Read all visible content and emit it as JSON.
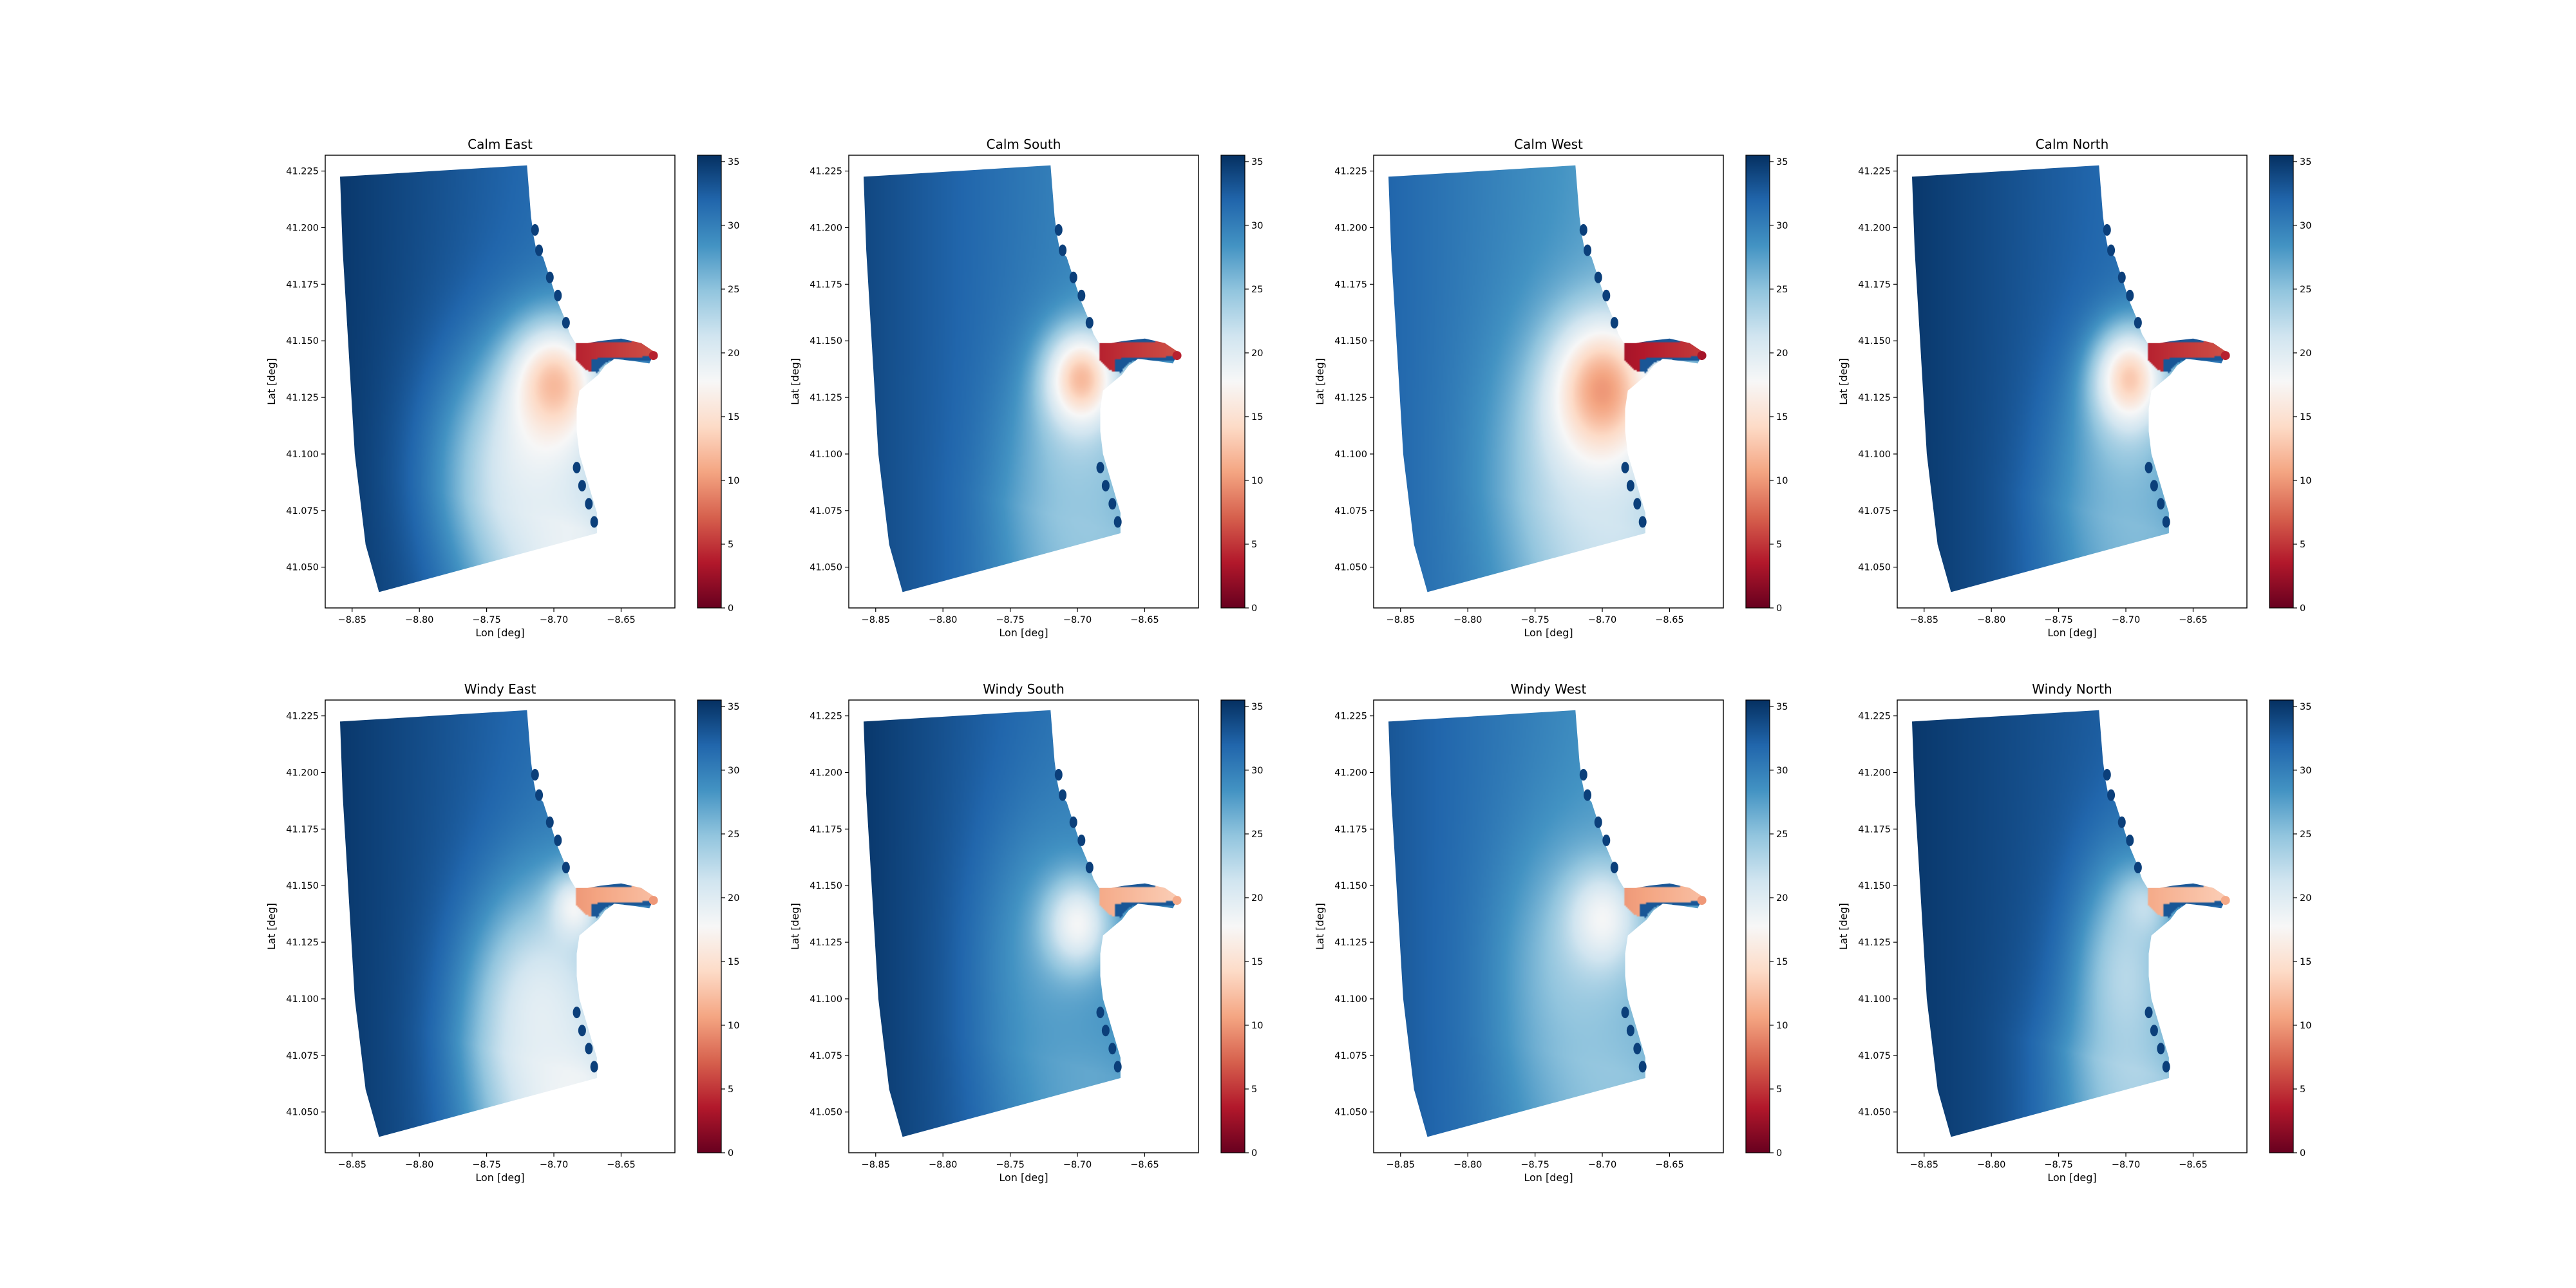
{
  "figure": {
    "colormap": "RdBu",
    "colormap_stops": [
      "#67001f",
      "#b2182b",
      "#d6604d",
      "#f4a582",
      "#fddbc7",
      "#f7f7f7",
      "#d1e5f0",
      "#92c5de",
      "#4393c3",
      "#2166ac",
      "#053061"
    ]
  },
  "chart_data": [
    {
      "type": "heatmap",
      "title": "Calm East",
      "xlabel": "Lon [deg]",
      "ylabel": "Lat [deg]",
      "xlim": [
        -8.87,
        -8.61
      ],
      "ylim": [
        41.032,
        41.232
      ],
      "xticks": [
        -8.85,
        -8.8,
        -8.75,
        -8.7,
        -8.65
      ],
      "xtick_labels": [
        "−8.85",
        "−8.80",
        "−8.75",
        "−8.70",
        "−8.65"
      ],
      "yticks": [
        41.05,
        41.075,
        41.1,
        41.125,
        41.15,
        41.175,
        41.2,
        41.225
      ],
      "ytick_labels": [
        "41.050",
        "41.075",
        "41.100",
        "41.125",
        "41.150",
        "41.175",
        "41.200",
        "41.225"
      ],
      "colorbar": {
        "range": [
          0,
          35.5
        ],
        "ticks": [
          0,
          5,
          10,
          15,
          20,
          25,
          30,
          35
        ],
        "tick_labels": [
          "0",
          "5",
          "10",
          "15",
          "20",
          "25",
          "30",
          "35"
        ]
      },
      "field": {
        "base": 31,
        "west_gain": 4,
        "low_center": [
          -8.7,
          41.13
        ],
        "low_value": 12,
        "low_radius": [
          0.032,
          0.026
        ],
        "south_trough": 19,
        "south_trough_spread": 0.035,
        "mixed_center": [
          -8.72,
          41.095
        ],
        "mixed_value": 19,
        "mixed_radius": [
          0.06,
          0.05
        ],
        "river_value": 4
      }
    },
    {
      "type": "heatmap",
      "title": "Calm South",
      "xlabel": "Lon [deg]",
      "ylabel": "Lat [deg]",
      "xlim": [
        -8.87,
        -8.61
      ],
      "ylim": [
        41.032,
        41.232
      ],
      "xticks": [
        -8.85,
        -8.8,
        -8.75,
        -8.7,
        -8.65
      ],
      "xtick_labels": [
        "−8.85",
        "−8.80",
        "−8.75",
        "−8.70",
        "−8.65"
      ],
      "yticks": [
        41.05,
        41.075,
        41.1,
        41.125,
        41.15,
        41.175,
        41.2,
        41.225
      ],
      "ytick_labels": [
        "41.050",
        "41.075",
        "41.100",
        "41.125",
        "41.150",
        "41.175",
        "41.200",
        "41.225"
      ],
      "colorbar": {
        "range": [
          0,
          35.5
        ],
        "ticks": [
          0,
          5,
          10,
          15,
          20,
          25,
          30,
          35
        ],
        "tick_labels": [
          "0",
          "5",
          "10",
          "15",
          "20",
          "25",
          "30",
          "35"
        ]
      },
      "field": {
        "base": 29,
        "west_gain": 5,
        "low_center": [
          -8.697,
          41.133
        ],
        "low_value": 12,
        "low_radius": [
          0.026,
          0.021
        ],
        "south_trough": 25,
        "south_trough_spread": 0.03,
        "mixed_center": [
          -8.7,
          41.1
        ],
        "mixed_value": 24,
        "mixed_radius": [
          0.045,
          0.045
        ],
        "river_value": 4
      }
    },
    {
      "type": "heatmap",
      "title": "Calm West",
      "xlabel": "Lon [deg]",
      "ylabel": "Lat [deg]",
      "xlim": [
        -8.87,
        -8.61
      ],
      "ylim": [
        41.032,
        41.232
      ],
      "xticks": [
        -8.85,
        -8.8,
        -8.75,
        -8.7,
        -8.65
      ],
      "xtick_labels": [
        "−8.85",
        "−8.80",
        "−8.75",
        "−8.70",
        "−8.65"
      ],
      "yticks": [
        41.05,
        41.075,
        41.1,
        41.125,
        41.15,
        41.175,
        41.2,
        41.225
      ],
      "ytick_labels": [
        "41.050",
        "41.075",
        "41.100",
        "41.125",
        "41.150",
        "41.175",
        "41.200",
        "41.225"
      ],
      "colorbar": {
        "range": [
          0,
          35.5
        ],
        "ticks": [
          0,
          5,
          10,
          15,
          20,
          25,
          30,
          35
        ],
        "tick_labels": [
          "0",
          "5",
          "10",
          "15",
          "20",
          "25",
          "30",
          "35"
        ]
      },
      "field": {
        "base": 27,
        "west_gain": 5,
        "low_center": [
          -8.7,
          41.128
        ],
        "low_value": 10,
        "low_radius": [
          0.036,
          0.03
        ],
        "south_trough": 22,
        "south_trough_spread": 0.035,
        "mixed_center": [
          -8.71,
          41.1
        ],
        "mixed_value": 21,
        "mixed_radius": [
          0.06,
          0.055
        ],
        "river_value": 3
      }
    },
    {
      "type": "heatmap",
      "title": "Calm North",
      "xlabel": "Lon [deg]",
      "ylabel": "Lat [deg]",
      "xlim": [
        -8.87,
        -8.61
      ],
      "ylim": [
        41.032,
        41.232
      ],
      "xticks": [
        -8.85,
        -8.8,
        -8.75,
        -8.7,
        -8.65
      ],
      "xtick_labels": [
        "−8.85",
        "−8.80",
        "−8.75",
        "−8.70",
        "−8.65"
      ],
      "yticks": [
        41.05,
        41.075,
        41.1,
        41.125,
        41.15,
        41.175,
        41.2,
        41.225
      ],
      "ytick_labels": [
        "41.050",
        "41.075",
        "41.100",
        "41.125",
        "41.150",
        "41.175",
        "41.200",
        "41.225"
      ],
      "colorbar": {
        "range": [
          0,
          35.5
        ],
        "ticks": [
          0,
          5,
          10,
          15,
          20,
          25,
          30,
          35
        ],
        "tick_labels": [
          "0",
          "5",
          "10",
          "15",
          "20",
          "25",
          "30",
          "35"
        ]
      },
      "field": {
        "base": 31,
        "west_gain": 4,
        "low_center": [
          -8.697,
          41.133
        ],
        "low_value": 13,
        "low_radius": [
          0.026,
          0.022
        ],
        "south_trough": 26,
        "south_trough_spread": 0.03,
        "mixed_center": [
          -8.7,
          41.1
        ],
        "mixed_value": 25,
        "mixed_radius": [
          0.045,
          0.045
        ],
        "river_value": 4
      }
    },
    {
      "type": "heatmap",
      "title": "Windy East",
      "xlabel": "Lon [deg]",
      "ylabel": "Lat [deg]",
      "xlim": [
        -8.87,
        -8.61
      ],
      "ylim": [
        41.032,
        41.232
      ],
      "xticks": [
        -8.85,
        -8.8,
        -8.75,
        -8.7,
        -8.65
      ],
      "xtick_labels": [
        "−8.85",
        "−8.80",
        "−8.75",
        "−8.70",
        "−8.65"
      ],
      "yticks": [
        41.05,
        41.075,
        41.1,
        41.125,
        41.15,
        41.175,
        41.2,
        41.225
      ],
      "ytick_labels": [
        "41.050",
        "41.075",
        "41.100",
        "41.125",
        "41.150",
        "41.175",
        "41.200",
        "41.225"
      ],
      "colorbar": {
        "range": [
          0,
          35.5
        ],
        "ticks": [
          0,
          5,
          10,
          15,
          20,
          25,
          30,
          35
        ],
        "tick_labels": [
          "0",
          "5",
          "10",
          "15",
          "20",
          "25",
          "30",
          "35"
        ]
      },
      "field": {
        "base": 31,
        "west_gain": 4,
        "low_center": [
          -8.685,
          41.14
        ],
        "low_value": 18,
        "low_radius": [
          0.018,
          0.015
        ],
        "south_trough": 18,
        "south_trough_spread": 0.04,
        "mixed_center": [
          -8.71,
          41.095
        ],
        "mixed_value": 19,
        "mixed_radius": [
          0.05,
          0.05
        ],
        "river_value": 10
      }
    },
    {
      "type": "heatmap",
      "title": "Windy South",
      "xlabel": "Lon [deg]",
      "ylabel": "Lat [deg]",
      "xlim": [
        -8.87,
        -8.61
      ],
      "ylim": [
        41.032,
        41.232
      ],
      "xticks": [
        -8.85,
        -8.8,
        -8.75,
        -8.7,
        -8.65
      ],
      "xtick_labels": [
        "−8.85",
        "−8.80",
        "−8.75",
        "−8.70",
        "−8.65"
      ],
      "yticks": [
        41.05,
        41.075,
        41.1,
        41.125,
        41.15,
        41.175,
        41.2,
        41.225
      ],
      "ytick_labels": [
        "41.050",
        "41.075",
        "41.100",
        "41.125",
        "41.150",
        "41.175",
        "41.200",
        "41.225"
      ],
      "colorbar": {
        "range": [
          0,
          35.5
        ],
        "ticks": [
          0,
          5,
          10,
          15,
          20,
          25,
          30,
          35
        ],
        "tick_labels": [
          "0",
          "5",
          "10",
          "15",
          "20",
          "25",
          "30",
          "35"
        ]
      },
      "field": {
        "base": 30,
        "west_gain": 5,
        "low_center": [
          -8.7,
          41.133
        ],
        "low_value": 18,
        "low_radius": [
          0.024,
          0.02
        ],
        "south_trough": 27,
        "south_trough_spread": 0.03,
        "mixed_center": [
          -8.72,
          41.12
        ],
        "mixed_value": 27,
        "mixed_radius": [
          0.05,
          0.06
        ],
        "river_value": 11
      }
    },
    {
      "type": "heatmap",
      "title": "Windy West",
      "xlabel": "Lon [deg]",
      "ylabel": "Lat [deg]",
      "xlim": [
        -8.87,
        -8.61
      ],
      "ylim": [
        41.032,
        41.232
      ],
      "xticks": [
        -8.85,
        -8.8,
        -8.75,
        -8.7,
        -8.65
      ],
      "xtick_labels": [
        "−8.85",
        "−8.80",
        "−8.75",
        "−8.70",
        "−8.65"
      ],
      "yticks": [
        41.05,
        41.075,
        41.1,
        41.125,
        41.15,
        41.175,
        41.2,
        41.225
      ],
      "ytick_labels": [
        "41.050",
        "41.075",
        "41.100",
        "41.125",
        "41.150",
        "41.175",
        "41.200",
        "41.225"
      ],
      "colorbar": {
        "range": [
          0,
          35.5
        ],
        "ticks": [
          0,
          5,
          10,
          15,
          20,
          25,
          30,
          35
        ],
        "tick_labels": [
          "0",
          "5",
          "10",
          "15",
          "20",
          "25",
          "30",
          "35"
        ]
      },
      "field": {
        "base": 28,
        "west_gain": 5,
        "low_center": [
          -8.7,
          41.135
        ],
        "low_value": 18,
        "low_radius": [
          0.026,
          0.022
        ],
        "south_trough": 25,
        "south_trough_spread": 0.035,
        "mixed_center": [
          -8.72,
          41.115
        ],
        "mixed_value": 24,
        "mixed_radius": [
          0.05,
          0.055
        ],
        "river_value": 10
      }
    },
    {
      "type": "heatmap",
      "title": "Windy North",
      "xlabel": "Lon [deg]",
      "ylabel": "Lat [deg]",
      "xlim": [
        -8.87,
        -8.61
      ],
      "ylim": [
        41.032,
        41.232
      ],
      "xticks": [
        -8.85,
        -8.8,
        -8.75,
        -8.7,
        -8.65
      ],
      "xtick_labels": [
        "−8.85",
        "−8.80",
        "−8.75",
        "−8.70",
        "−8.65"
      ],
      "yticks": [
        41.05,
        41.075,
        41.1,
        41.125,
        41.15,
        41.175,
        41.2,
        41.225
      ],
      "ytick_labels": [
        "41.050",
        "41.075",
        "41.100",
        "41.125",
        "41.150",
        "41.175",
        "41.200",
        "41.225"
      ],
      "colorbar": {
        "range": [
          0,
          35.5
        ],
        "ticks": [
          0,
          5,
          10,
          15,
          20,
          25,
          30,
          35
        ],
        "tick_labels": [
          "0",
          "5",
          "10",
          "15",
          "20",
          "25",
          "30",
          "35"
        ]
      },
      "field": {
        "base": 32,
        "west_gain": 3,
        "low_center": [
          -8.687,
          41.14
        ],
        "low_value": 22,
        "low_radius": [
          0.018,
          0.015
        ],
        "south_trough": 24,
        "south_trough_spread": 0.035,
        "mixed_center": [
          -8.7,
          41.11
        ],
        "mixed_value": 22,
        "mixed_radius": [
          0.035,
          0.05
        ],
        "river_value": 11
      }
    }
  ]
}
